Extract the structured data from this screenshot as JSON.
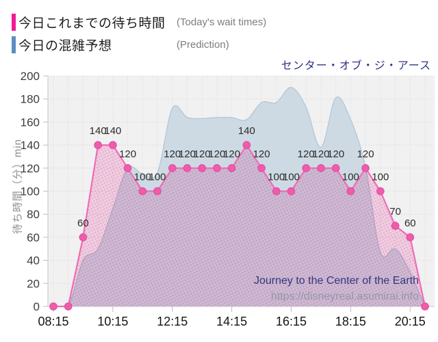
{
  "legend": {
    "items": [
      {
        "label": "今日これまでの待ち時間",
        "sublabel": "(Today's wait times)",
        "color": "#f3189a"
      },
      {
        "label": "今日の混雑予想",
        "sublabel": "(Prediction)",
        "color": "#5d8ec2"
      }
    ]
  },
  "title": "センター・オブ・ジ・アース",
  "watermark": {
    "line1": "Journey to the Center of the Earth",
    "line2": "https://disneyreal.asumirai.info"
  },
  "chart_data": {
    "type": "area",
    "title": "センター・オブ・ジ・アース",
    "ylabel": "待ち時間（分）min",
    "ylim": [
      0,
      200
    ],
    "y_ticks": [
      0,
      20,
      40,
      60,
      80,
      100,
      120,
      140,
      160,
      180,
      200
    ],
    "x": [
      "08:15",
      "08:45",
      "09:15",
      "09:45",
      "10:15",
      "10:45",
      "11:15",
      "11:45",
      "12:15",
      "12:45",
      "13:15",
      "13:45",
      "14:15",
      "14:45",
      "15:15",
      "15:45",
      "16:15",
      "16:45",
      "17:15",
      "17:45",
      "18:15",
      "18:45",
      "19:15",
      "19:45",
      "20:15",
      "20:45"
    ],
    "x_tick_labels": [
      "08:15",
      "10:15",
      "12:15",
      "14:15",
      "16:15",
      "18:15",
      "20:15"
    ],
    "x_tick_indices": [
      0,
      4,
      8,
      12,
      16,
      20,
      24
    ],
    "grid": true,
    "legend_position": "top-left",
    "series": [
      {
        "name": "今日これまでの待ち時間 (Today's wait times)",
        "style": "line-markers-labels",
        "line_color": "#ef6cb3",
        "marker_color": "#ee5cab",
        "area_base_color": "#fdd9ec",
        "area_dot_color": "#f3abd4",
        "values": [
          0,
          0,
          60,
          140,
          140,
          120,
          100,
          100,
          120,
          120,
          120,
          120,
          120,
          140,
          120,
          100,
          100,
          120,
          120,
          120,
          100,
          120,
          100,
          70,
          60,
          0
        ]
      },
      {
        "name": "今日の混雑予想 (Prediction)",
        "style": "smooth-area",
        "fill_color": "#cbd8e2",
        "edge_color": "#b5c8d6",
        "values": [
          0,
          0,
          40,
          50,
          85,
          120,
          115,
          116,
          172,
          164,
          163,
          164,
          164,
          162,
          177,
          177,
          190,
          173,
          138,
          181,
          162,
          121,
          47,
          50,
          30,
          0
        ]
      }
    ]
  }
}
